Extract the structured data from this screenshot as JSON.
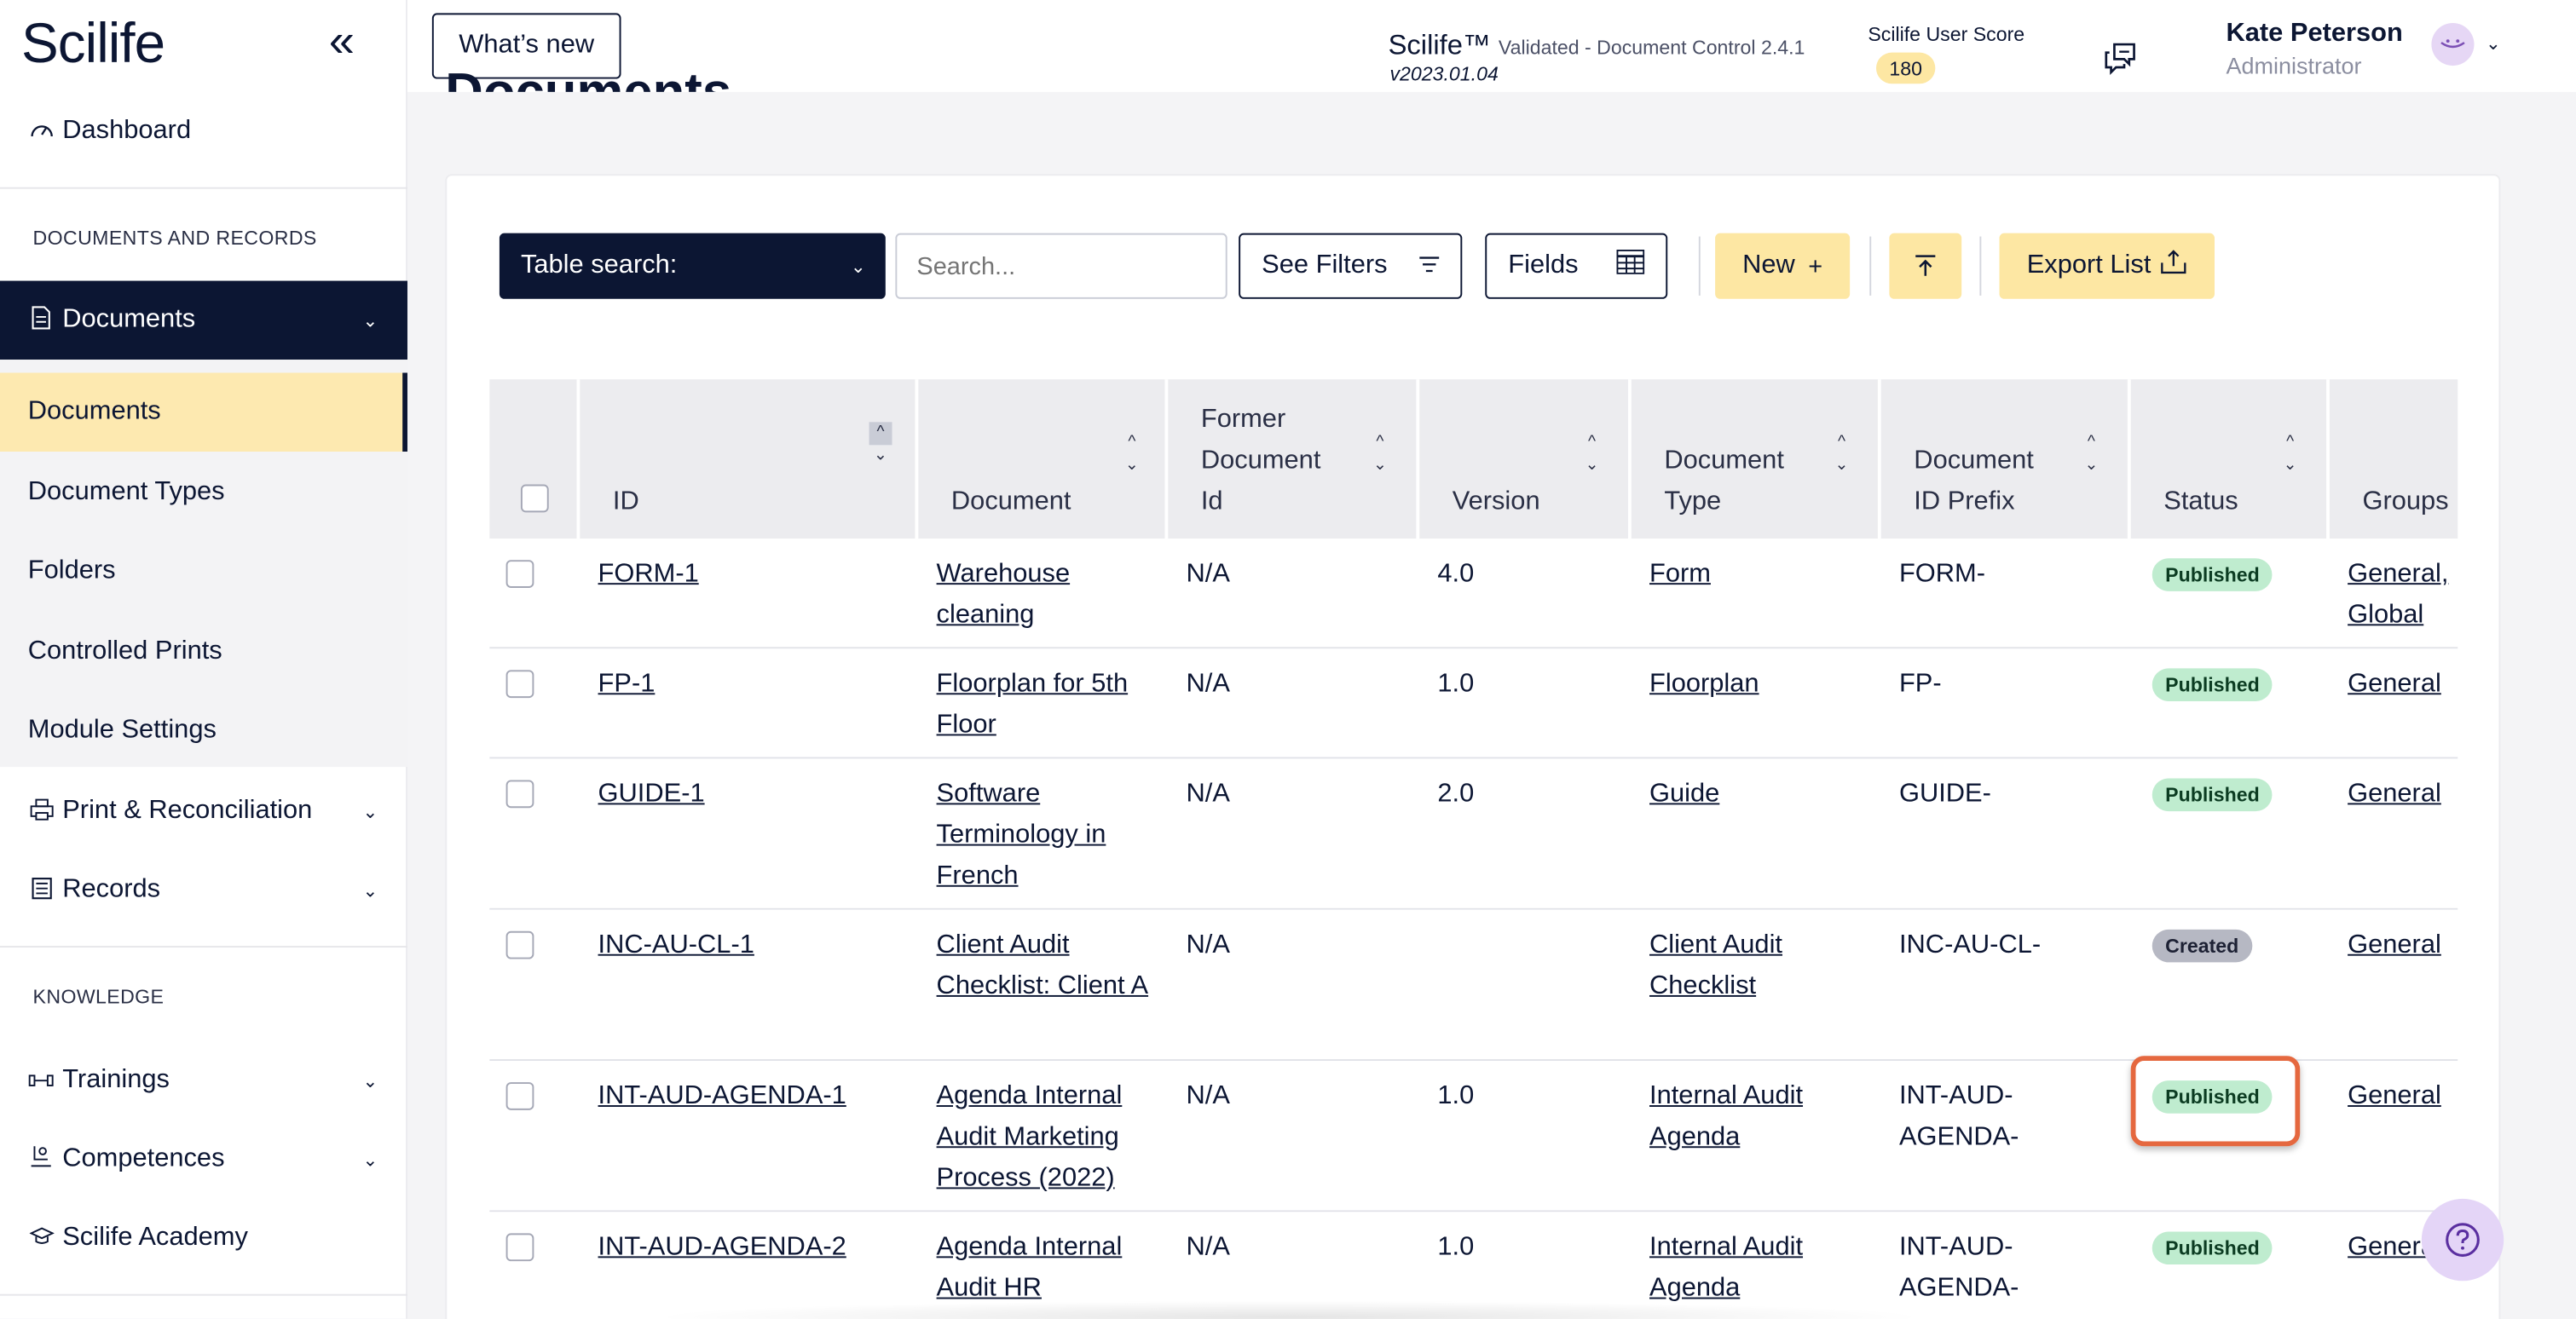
{
  "sidebar": {
    "logo": "Scilife",
    "collapse_icon": "double-chevron-left-icon",
    "dashboard": "Dashboard",
    "section_docs": "DOCUMENTS AND RECORDS",
    "documents": "Documents",
    "sub_items": [
      "Documents",
      "Document Types",
      "Folders",
      "Controlled Prints",
      "Module Settings"
    ],
    "print_reconciliation": "Print & Reconciliation",
    "records": "Records",
    "section_knowledge": "KNOWLEDGE",
    "trainings": "Trainings",
    "competences": "Competences",
    "academy": "Scilife Academy"
  },
  "topbar": {
    "whats_new": "What’s new",
    "app_name": "Scilife™",
    "app_sub": "Validated - Document Control 2.4.1",
    "app_version": "v2023.01.04",
    "score_label": "Scilife User Score",
    "score_value": "180",
    "user_name": "Kate Peterson",
    "user_role": "Administrator"
  },
  "main": {
    "page_title": "Documents",
    "toolbar": {
      "table_search": "Table search:",
      "search_placeholder": "Search...",
      "see_filters": "See Filters",
      "fields": "Fields",
      "new": "New",
      "export_list": "Export List"
    },
    "table": {
      "columns": [
        {
          "label": "ID"
        },
        {
          "label": "Document"
        },
        {
          "label": "Former Document Id"
        },
        {
          "label": "Version"
        },
        {
          "label": "Document Type"
        },
        {
          "label": "Document ID Prefix"
        },
        {
          "label": "Status"
        },
        {
          "label": "Groups"
        }
      ],
      "rows": [
        {
          "id": "FORM-1",
          "document": "Warehouse cleaning",
          "former": "N/A",
          "version": "4.0",
          "type": "Form",
          "prefix": "FORM-",
          "status": "Published",
          "groups": "General, Global"
        },
        {
          "id": "FP-1",
          "document": "Floorplan for 5th Floor",
          "former": "N/A",
          "version": "1.0",
          "type": "Floorplan",
          "prefix": "FP-",
          "status": "Published",
          "groups": "General"
        },
        {
          "id": "GUIDE-1",
          "document": "Software Terminology in French",
          "former": "N/A",
          "version": "2.0",
          "type": "Guide",
          "prefix": "GUIDE-",
          "status": "Published",
          "groups": "General"
        },
        {
          "id": "INC-AU-CL-1",
          "document": "Client Audit Checklist: Client A",
          "former": "N/A",
          "version": "",
          "type": "Client Audit Checklist",
          "prefix": "INC-AU-CL-",
          "status": "Created",
          "groups": "General"
        },
        {
          "id": "INT-AUD-AGENDA-1",
          "document": "Agenda Internal Audit Marketing Process (2022)",
          "former": "N/A",
          "version": "1.0",
          "type": "Internal Audit Agenda",
          "prefix": "INT-AUD-AGENDA-",
          "status": "Published",
          "groups": "General"
        },
        {
          "id": "INT-AUD-AGENDA-2",
          "document": "Agenda Internal Audit HR",
          "former": "N/A",
          "version": "1.0",
          "type": "Internal Audit Agenda",
          "prefix": "INT-AUD-AGENDA-",
          "status": "Published",
          "groups": "General"
        }
      ]
    }
  },
  "colors": {
    "navy": "#0c1633",
    "accent_yellow": "#fde7a3",
    "published_green": "#bfeccf",
    "created_gray": "#b6b8c3",
    "highlight_orange": "#e5683f"
  }
}
